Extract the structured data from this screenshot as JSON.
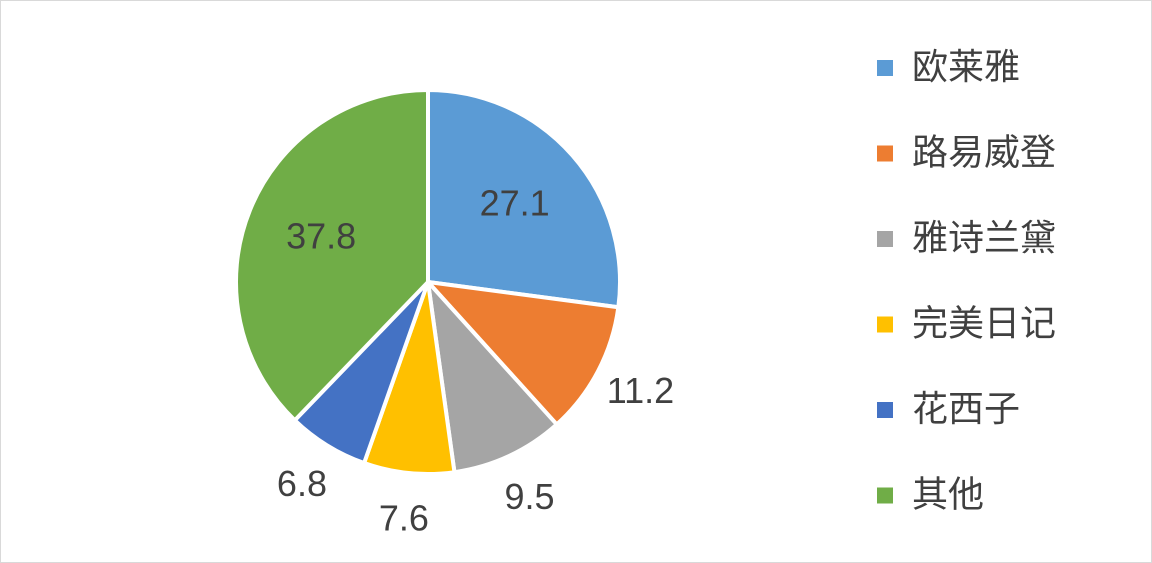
{
  "chart_data": {
    "type": "pie",
    "categories": [
      "欧莱雅",
      "路易威登",
      "雅诗兰黛",
      "完美日记",
      "花西子",
      "其他"
    ],
    "values": [
      27.1,
      11.2,
      9.5,
      7.6,
      6.8,
      37.8
    ],
    "colors": [
      "#5b9bd5",
      "#ed7d31",
      "#a5a5a5",
      "#ffc000",
      "#4472c4",
      "#70ad47"
    ],
    "legend": "right"
  }
}
